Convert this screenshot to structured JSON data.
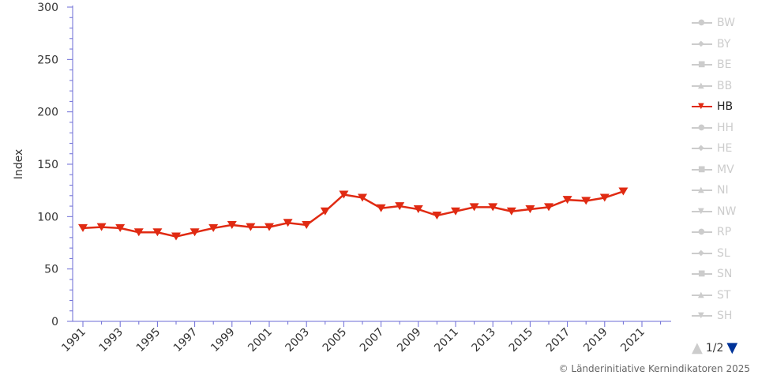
{
  "chart_data": {
    "type": "line",
    "ylabel": "Index",
    "ylim": [
      0,
      300
    ],
    "yticks": [
      0,
      50,
      100,
      150,
      200,
      250,
      300
    ],
    "xlim": [
      1991,
      2021
    ],
    "xticks": [
      "1991",
      "1993",
      "1995",
      "1997",
      "1999",
      "2001",
      "2003",
      "2005",
      "2007",
      "2009",
      "2011",
      "2013",
      "2015",
      "2017",
      "2019",
      "2021"
    ],
    "series": [
      {
        "name": "HB",
        "color": "#e02a12",
        "x": [
          1991,
          1992,
          1993,
          1994,
          1995,
          1996,
          1997,
          1998,
          1999,
          2000,
          2001,
          2002,
          2003,
          2004,
          2005,
          2006,
          2007,
          2008,
          2009,
          2010,
          2011,
          2012,
          2013,
          2014,
          2015,
          2016,
          2017,
          2018,
          2019,
          2020
        ],
        "values": [
          89,
          90,
          89,
          85,
          85,
          81,
          85,
          89,
          92,
          90,
          90,
          94,
          92,
          105,
          121,
          118,
          108,
          110,
          107,
          101,
          105,
          109,
          109,
          105,
          107,
          109,
          116,
          115,
          118,
          124
        ]
      }
    ],
    "legend": {
      "placement": "right",
      "items": [
        {
          "label": "BW",
          "symbol": "●",
          "active": false
        },
        {
          "label": "BY",
          "symbol": "◆",
          "active": false
        },
        {
          "label": "BE",
          "symbol": "■",
          "active": false
        },
        {
          "label": "BB",
          "symbol": "▲",
          "active": false
        },
        {
          "label": "HB",
          "symbol": "▼",
          "active": true
        },
        {
          "label": "HH",
          "symbol": "●",
          "active": false
        },
        {
          "label": "HE",
          "symbol": "◆",
          "active": false
        },
        {
          "label": "MV",
          "symbol": "■",
          "active": false
        },
        {
          "label": "NI",
          "symbol": "▲",
          "active": false
        },
        {
          "label": "NW",
          "symbol": "▼",
          "active": false
        },
        {
          "label": "RP",
          "symbol": "●",
          "active": false
        },
        {
          "label": "SL",
          "symbol": "◆",
          "active": false
        },
        {
          "label": "SN",
          "symbol": "■",
          "active": false
        },
        {
          "label": "ST",
          "symbol": "▲",
          "active": false
        },
        {
          "label": "SH",
          "symbol": "▼",
          "active": false
        }
      ]
    }
  },
  "pager": {
    "text": "1/2",
    "up_icon": "▲",
    "down_icon": "▼"
  },
  "credit": "© Länderinitiative Kernindikatoren 2025"
}
